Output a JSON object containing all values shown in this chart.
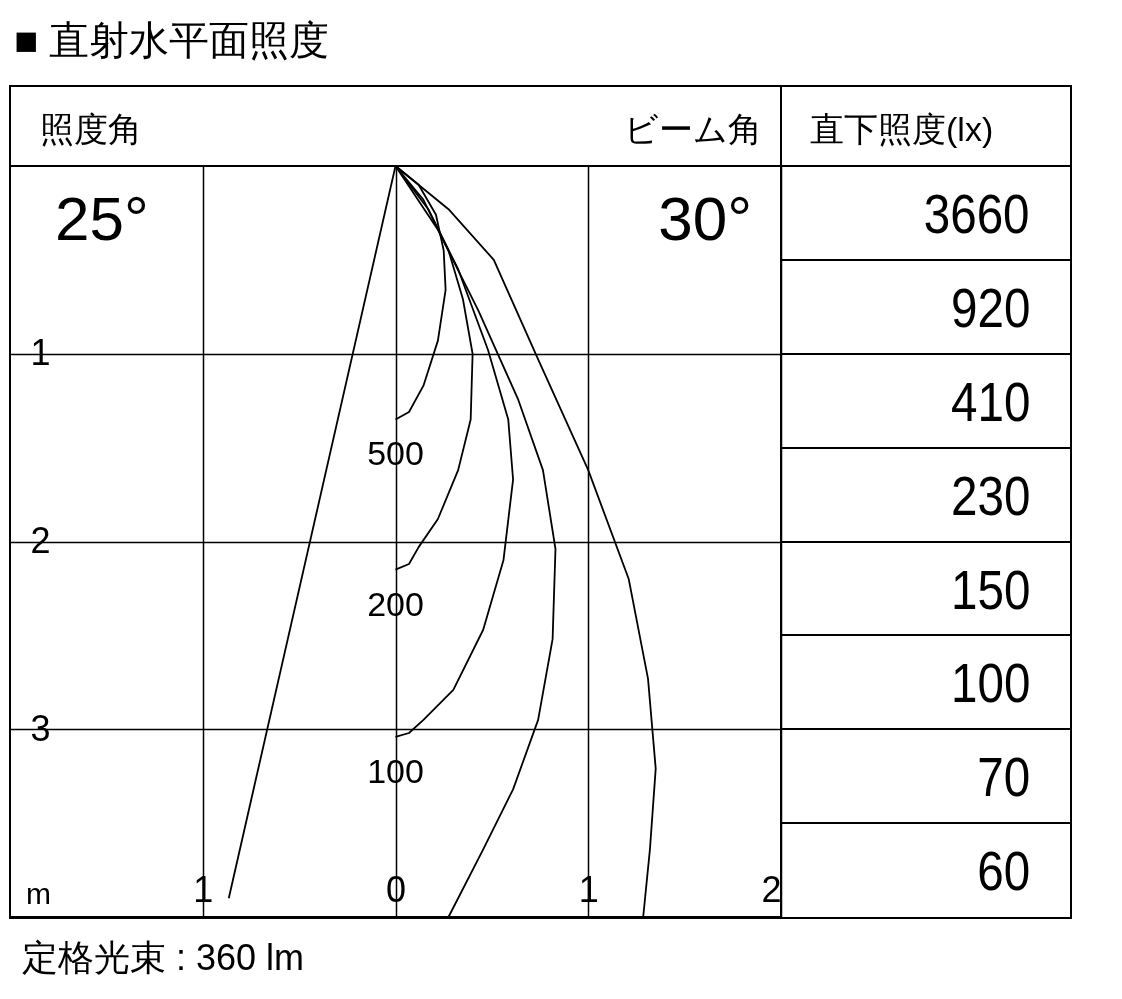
{
  "chart_data": {
    "type": "line",
    "title": "■ 直射水平面照度",
    "xlabel": "m",
    "annotations": [
      "照度角",
      "25°",
      "ビーム角",
      "30°",
      "直下照度(lx)",
      "3660",
      "920",
      "410",
      "230",
      "150",
      "100",
      "70",
      "60",
      "定格光束 : 360 lm"
    ],
    "xlim": [
      -2,
      2
    ],
    "ylim": [
      4,
      0
    ],
    "xticks": [
      {
        "value": -1,
        "label": "1"
      },
      0,
      1,
      2
    ],
    "yticks": [
      1,
      2,
      3
    ],
    "grid": true,
    "series": [
      {
        "name": "500",
        "color": "#000000",
        "x": [
          0,
          0.12,
          0.21,
          0.25,
          0.26,
          0.22,
          0.145,
          0.07,
          0
        ],
        "values": [
          0,
          0.1,
          0.26,
          0.45,
          0.66,
          0.93,
          1.17,
          1.31,
          1.35
        ]
      },
      {
        "name": "200",
        "color": "#000000",
        "x": [
          0,
          0.145,
          0.275,
          0.35,
          0.4,
          0.39,
          0.325,
          0.22,
          0.12,
          0.07,
          0
        ],
        "values": [
          0,
          0.18,
          0.45,
          0.71,
          1.0,
          1.35,
          1.62,
          1.88,
          2.03,
          2.12,
          2.15
        ]
      },
      {
        "name": "100",
        "color": "#000000",
        "x": [
          0,
          0.17,
          0.325,
          0.48,
          0.585,
          0.61,
          0.56,
          0.455,
          0.3,
          0.145,
          0.07,
          0
        ],
        "values": [
          0,
          0.23,
          0.55,
          0.98,
          1.35,
          1.67,
          2.1,
          2.47,
          2.79,
          2.95,
          3.02,
          3.04
        ]
      },
      {
        "color": "#000000",
        "x": [
          0,
          0.22,
          0.43,
          0.635,
          0.765,
          0.83,
          0.815,
          0.74,
          0.61,
          0.455,
          0.275
        ],
        "values": [
          0,
          0.34,
          0.77,
          1.24,
          1.62,
          2.04,
          2.52,
          2.95,
          3.32,
          3.64,
          4.0
        ]
      },
      {
        "color": "#000000",
        "x": [
          0,
          0.275,
          0.51,
          0.74,
          1.0,
          1.21,
          1.31,
          1.35,
          1.32,
          1.285
        ],
        "values": [
          0,
          0.23,
          0.5,
          1.03,
          1.62,
          2.2,
          2.73,
          3.21,
          3.64,
          4.0
        ]
      },
      {
        "color": "#000000",
        "x": [
          0,
          -0.865
        ],
        "values": [
          0,
          3.9
        ]
      }
    ]
  }
}
